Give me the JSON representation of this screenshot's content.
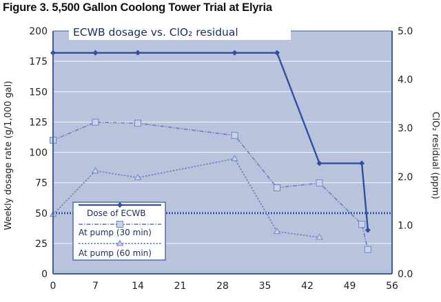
{
  "figure_title": "Figure 3. 5,500 Gallon Coolong Tower Trial at Elyria",
  "colors": {
    "plot_bg": "#b9c4dc",
    "grid": "#f2f4fa",
    "series_dark": "#2f4fa0",
    "series_light": "#6f86c4",
    "marker_fill_light": "#c9d3ea",
    "frame": "#3c5aa6"
  },
  "chart_data": {
    "type": "line",
    "title": "ECWB dosage vs. ClO₂ residual",
    "xlabel": "",
    "ylabel_left": "Weekly dosage rate (g/1,000 gal)",
    "ylabel_right": "ClO₂ residual (ppm)",
    "xlim": [
      0,
      56
    ],
    "ylim_left": [
      0,
      200
    ],
    "ylim_right": [
      0,
      5
    ],
    "x_ticks": [
      "0",
      "7",
      "14",
      "21",
      "28",
      "35",
      "42",
      "49",
      "56"
    ],
    "y_left_ticks": [
      "0",
      "25",
      "50",
      "75",
      "100",
      "125",
      "150",
      "175",
      "200"
    ],
    "y_right_ticks": [
      "0.0",
      "1.0",
      "2.0",
      "3.0",
      "4.0",
      "5.0"
    ],
    "grid": true,
    "legend_position": "bottom-left",
    "series": [
      {
        "name": "Dose of ECWB",
        "axis": "left",
        "style": "solid",
        "marker": "diamond",
        "x": [
          0,
          7,
          14,
          30,
          37,
          44,
          51,
          52
        ],
        "y": [
          182,
          182,
          182,
          182,
          182,
          91,
          91,
          36
        ]
      },
      {
        "name": "At pump (30 min)",
        "axis": "right",
        "style": "dashdot",
        "marker": "square",
        "x": [
          0,
          7,
          14,
          30,
          37,
          44,
          51,
          52
        ],
        "y": [
          2.75,
          3.12,
          3.1,
          2.85,
          1.77,
          1.87,
          1.02,
          0.5
        ]
      },
      {
        "name": "At pump (60 min)",
        "axis": "right",
        "style": "dotted",
        "marker": "triangle",
        "x": [
          0,
          7,
          14,
          30,
          37,
          44
        ],
        "y": [
          1.22,
          2.12,
          1.98,
          2.37,
          0.87,
          0.75
        ]
      }
    ],
    "reference_line": {
      "axis": "left",
      "y": 50,
      "style": "dotted"
    }
  }
}
